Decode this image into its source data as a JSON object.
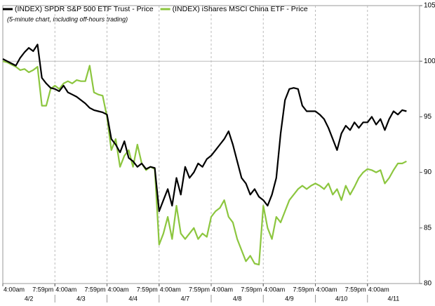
{
  "chart_data": {
    "type": "line",
    "subtitle": "(5-minute chart, including off-hours trading)",
    "day_labels": [
      "4/2",
      "4/3",
      "4/4",
      "4/7",
      "4/8",
      "4/9",
      "4/10",
      "4/11"
    ],
    "categories": [
      "4:00am",
      null,
      null,
      null,
      null,
      null,
      null,
      null,
      null,
      null,
      null,
      "7:59pm",
      "4:00am",
      null,
      null,
      null,
      null,
      null,
      null,
      null,
      null,
      null,
      null,
      "7:59pm",
      "4:00am",
      null,
      null,
      null,
      null,
      null,
      null,
      null,
      null,
      null,
      null,
      "7:59pm",
      "4:00am",
      null,
      null,
      null,
      null,
      null,
      null,
      null,
      null,
      null,
      null,
      "7:59pm",
      "4:00am",
      null,
      null,
      null,
      null,
      null,
      null,
      null,
      null,
      null,
      null,
      "7:59pm",
      "4:00am",
      null,
      null,
      null,
      null,
      null,
      null,
      null,
      null,
      null,
      null,
      "7:59pm",
      "4:00am",
      null,
      null,
      null,
      null,
      null,
      null,
      null,
      null,
      null,
      null,
      "7:59pm",
      "4:00am",
      null,
      null,
      null,
      null,
      null,
      null,
      null,
      null,
      null,
      null,
      null
    ],
    "series": [
      {
        "name": "(INDEX) SPDR S&P 500 ETF Trust - Price",
        "color": "#000000",
        "values": [
          100.2,
          100.0,
          99.8,
          99.6,
          100.3,
          100.8,
          101.2,
          100.9,
          101.5,
          98.5,
          98.0,
          97.6,
          97.5,
          97.3,
          97.8,
          97.2,
          97.0,
          96.8,
          96.5,
          96.2,
          95.8,
          95.6,
          95.5,
          95.4,
          95.2,
          93.0,
          92.5,
          91.8,
          92.8,
          91.3,
          91.0,
          90.5,
          90.8,
          90.3,
          90.5,
          90.4,
          86.5,
          87.5,
          88.5,
          87.0,
          89.5,
          88.0,
          90.5,
          89.5,
          90.0,
          90.8,
          90.5,
          91.2,
          91.5,
          92.0,
          92.5,
          93.0,
          93.7,
          92.5,
          91.0,
          89.5,
          89.0,
          88.0,
          88.5,
          87.8,
          87.5,
          87.0,
          88.0,
          89.5,
          93.5,
          96.5,
          97.5,
          97.6,
          97.5,
          96.0,
          95.5,
          95.5,
          95.5,
          95.2,
          94.8,
          94.0,
          93.0,
          92.0,
          93.5,
          94.2,
          93.8,
          94.5,
          94.0,
          94.5,
          94.5,
          95.0,
          94.3,
          94.8,
          93.8,
          94.8,
          95.5,
          95.2,
          95.6,
          95.5,
          null,
          null
        ]
      },
      {
        "name": "(INDEX) iShares MSCI China ETF - Price",
        "color": "#8cc63f",
        "values": [
          100.0,
          99.9,
          99.7,
          99.5,
          99.2,
          99.3,
          99.0,
          99.2,
          99.5,
          96.0,
          96.0,
          97.5,
          97.8,
          97.5,
          98.0,
          98.2,
          98.0,
          98.3,
          98.2,
          98.2,
          99.6,
          97.2,
          97.0,
          96.9,
          95.0,
          92.0,
          93.0,
          90.5,
          91.5,
          92.0,
          90.5,
          92.5,
          90.8,
          90.2,
          90.5,
          90.3,
          83.5,
          84.5,
          86.0,
          84.0,
          87.0,
          84.5,
          84.0,
          84.5,
          85.0,
          84.0,
          84.5,
          84.2,
          86.0,
          86.5,
          86.8,
          87.5,
          86.0,
          85.5,
          84.0,
          83.0,
          82.0,
          82.5,
          81.8,
          81.7,
          87.0,
          85.0,
          84.0,
          86.0,
          85.5,
          86.5,
          87.5,
          88.0,
          88.5,
          88.8,
          88.5,
          88.8,
          89.0,
          88.8,
          88.5,
          89.0,
          88.0,
          88.5,
          87.5,
          88.8,
          88.0,
          88.7,
          89.5,
          90.0,
          90.3,
          90.2,
          90.0,
          90.2,
          89.0,
          89.5,
          90.2,
          90.8,
          90.8,
          91.0,
          null,
          null
        ]
      }
    ],
    "ylim": [
      80,
      105
    ],
    "yticks": [
      80,
      85,
      90,
      95,
      100,
      105
    ],
    "reference_line": 100
  }
}
